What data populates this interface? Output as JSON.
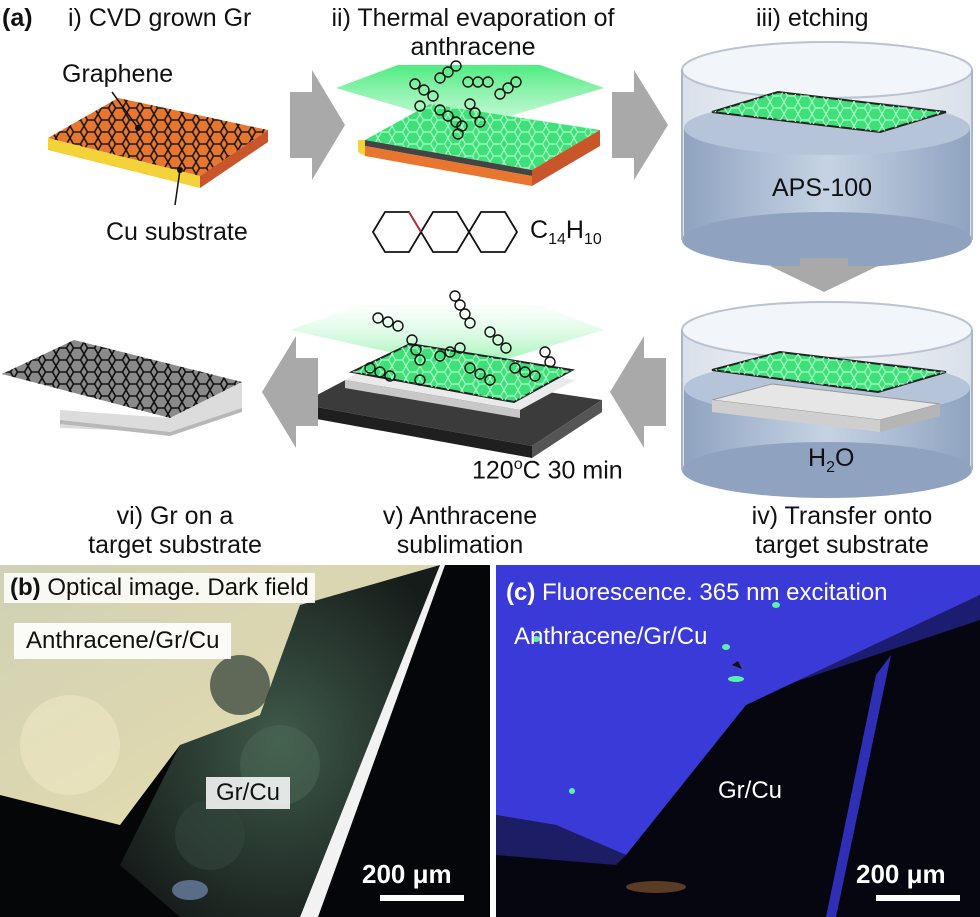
{
  "panel_a": {
    "tag": "(a)",
    "step1": "i) CVD grown Gr",
    "graphene_label": "Graphene",
    "cu_label": "Cu substrate",
    "step2_line1": "ii) Thermal evaporation of",
    "step2_line2": "anthracene",
    "formula_C": "C",
    "formula_C_sub": "14",
    "formula_H": "H",
    "formula_H_sub": "10",
    "step3": "iii) etching",
    "aps_label": "APS-100",
    "water_H": "H",
    "water_sub": "2",
    "water_O": "O",
    "temp_prefix": "120",
    "temp_sup": "o",
    "temp_suffix": "C 30 min",
    "step4_line1": "iv) Transfer onto",
    "step4_line2": "target substrate",
    "step5_line1": "v) Anthracene",
    "step5_line2": "sublimation",
    "step6_line1": "vi) Gr on a",
    "step6_line2": "target substrate"
  },
  "panel_b": {
    "tag": "(b)",
    "title": "Optical image. Dark field",
    "region1": "Anthracene/Gr/Cu",
    "region2": "Gr/Cu",
    "scale": "200 μm"
  },
  "panel_c": {
    "tag": "(c)",
    "title": "Fluorescence. 365 nm excitation",
    "region1": "Anthracene/Gr/Cu",
    "region2": "Gr/Cu",
    "scale": "200 μm"
  },
  "colors": {
    "copper": "#e8762e",
    "graphene_green": "#3fe07a",
    "beaker_blue": "#9fb2cc",
    "arrow_gray": "#a9a9a9",
    "fluor_blue": "#3a3ad8"
  }
}
